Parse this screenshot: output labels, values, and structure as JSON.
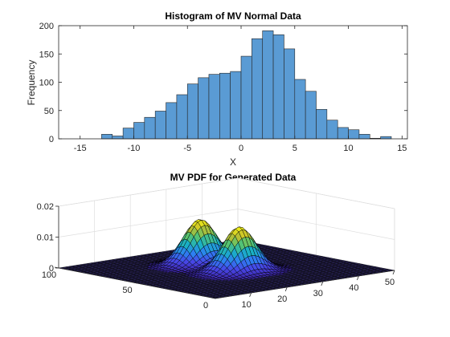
{
  "chart_data": [
    {
      "type": "bar",
      "title": "Histogram of MV Normal Data",
      "xlabel": "X",
      "ylabel": "Frequency",
      "xlim": [
        -17,
        15.5
      ],
      "ylim": [
        0,
        200
      ],
      "xticks": [
        -15,
        -10,
        -5,
        0,
        5,
        10,
        15
      ],
      "yticks": [
        0,
        50,
        100,
        150,
        200
      ],
      "bin_width": 1,
      "bins": [
        {
          "x0": -13,
          "x1": -12,
          "value": 8
        },
        {
          "x0": -12,
          "x1": -11,
          "value": 5
        },
        {
          "x0": -11,
          "x1": -10,
          "value": 19
        },
        {
          "x0": -10,
          "x1": -9,
          "value": 29
        },
        {
          "x0": -9,
          "x1": -8,
          "value": 38
        },
        {
          "x0": -8,
          "x1": -7,
          "value": 49
        },
        {
          "x0": -7,
          "x1": -6,
          "value": 64
        },
        {
          "x0": -6,
          "x1": -5,
          "value": 78
        },
        {
          "x0": -5,
          "x1": -4,
          "value": 97
        },
        {
          "x0": -4,
          "x1": -3,
          "value": 108
        },
        {
          "x0": -3,
          "x1": -2,
          "value": 114
        },
        {
          "x0": -2,
          "x1": -1,
          "value": 116
        },
        {
          "x0": -1,
          "x1": 0,
          "value": 119
        },
        {
          "x0": 0,
          "x1": 1,
          "value": 146
        },
        {
          "x0": 1,
          "x1": 2,
          "value": 177
        },
        {
          "x0": 2,
          "x1": 3,
          "value": 191
        },
        {
          "x0": 3,
          "x1": 4,
          "value": 184
        },
        {
          "x0": 4,
          "x1": 5,
          "value": 159
        },
        {
          "x0": 5,
          "x1": 6,
          "value": 105
        },
        {
          "x0": 6,
          "x1": 7,
          "value": 84
        },
        {
          "x0": 7,
          "x1": 8,
          "value": 52
        },
        {
          "x0": 8,
          "x1": 9,
          "value": 33
        },
        {
          "x0": 9,
          "x1": 10,
          "value": 20
        },
        {
          "x0": 10,
          "x1": 11,
          "value": 16
        },
        {
          "x0": 11,
          "x1": 12,
          "value": 8
        },
        {
          "x0": 12,
          "x1": 13,
          "value": 1
        },
        {
          "x0": 13,
          "x1": 14,
          "value": 4
        }
      ],
      "bar_color": "#5a9bd4",
      "edge_color": "#262626"
    },
    {
      "type": "surface",
      "title": "MV PDF for Generated Data",
      "x_ticks": [
        10,
        20,
        30,
        40,
        50
      ],
      "y_ticks": [
        0,
        50,
        100
      ],
      "z_ticks": [
        0,
        0.01,
        0.02
      ],
      "xlim": [
        0,
        50
      ],
      "ylim": [
        0,
        100
      ],
      "zlim": [
        0,
        0.02
      ],
      "grid_n": 50,
      "peaks": [
        {
          "x": 25,
          "y": 67,
          "sx": 4,
          "sy": 6,
          "height": 0.0145
        },
        {
          "x": 25,
          "y": 42,
          "sx": 4,
          "sy": 6,
          "height": 0.0145
        }
      ],
      "colormap": [
        "#3e26a8",
        "#4746e6",
        "#2d81f2",
        "#1ab0c5",
        "#58c46f",
        "#c7bf2b",
        "#f9fb15"
      ],
      "grid": true
    }
  ]
}
